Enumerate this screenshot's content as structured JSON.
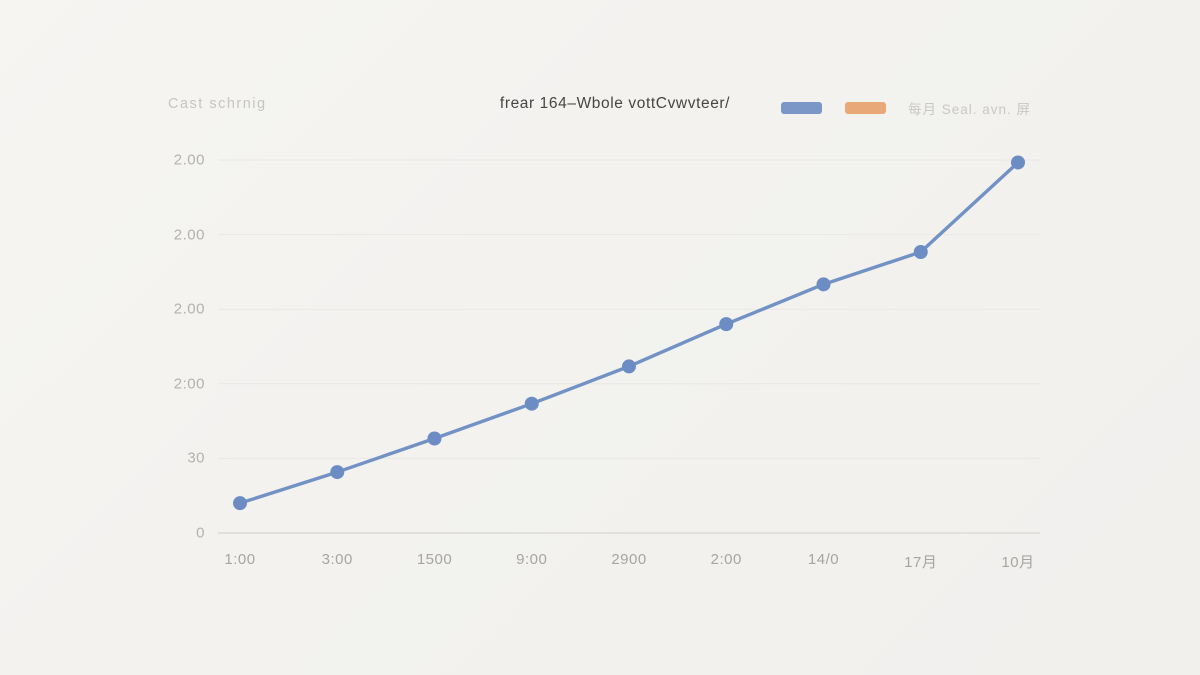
{
  "page": {
    "background": "#f3f2ef"
  },
  "header": {
    "left_label": "Cast schrnig",
    "title": "frear 164–Wbole vottCvwvteer/",
    "legend": {
      "swatches": [
        {
          "name": "series-blue",
          "color": "#7b97c7"
        },
        {
          "name": "series-orange",
          "color": "#e9a878"
        }
      ],
      "label": "每月 Seal. avn. 屏"
    }
  },
  "chart_data": {
    "type": "line",
    "title": "frear 164–Wbole vottCvwvteer/",
    "categories": [
      "1:00",
      "3:00",
      "1500",
      "9:00",
      "2900",
      "2:00",
      "14/0",
      "17月",
      "10月"
    ],
    "series": [
      {
        "name": "每月 Seal. avn. 屏",
        "line_color": "#7292c5",
        "point_color": "#6b8dc3",
        "values": [
          12,
          24.5,
          38,
          52,
          67,
          84,
          100,
          113,
          149
        ]
      }
    ],
    "y_ticks": [
      {
        "label": "2.00",
        "value": 150
      },
      {
        "label": "2.00",
        "value": 120
      },
      {
        "label": "2.00",
        "value": 90
      },
      {
        "label": "2:00",
        "value": 60
      },
      {
        "label": "30",
        "value": 30
      },
      {
        "label": "0",
        "value": 0
      }
    ],
    "ylim": [
      0,
      150
    ],
    "grid": true,
    "legend_position": "top-right",
    "colors": {
      "grid": "#e9e8e3",
      "axis": "#dbdad6",
      "y_tick_text": "#b3b2af",
      "x_tick_text": "#a6a5a2"
    }
  }
}
